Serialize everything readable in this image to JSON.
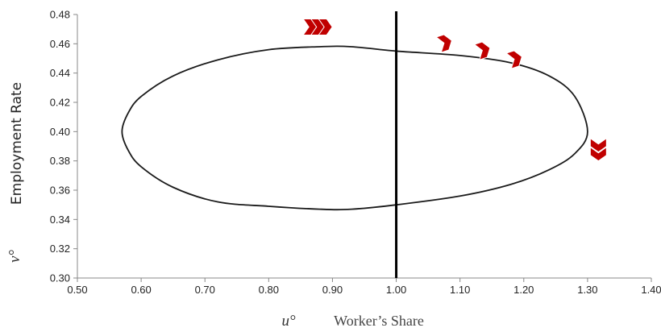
{
  "chart_data": {
    "type": "line",
    "title": "",
    "xlabel": "Worker’s Share",
    "xlabel_symbol": "u°",
    "ylabel": "Employment Rate",
    "ylabel_symbol": "v°",
    "xlim": [
      0.5,
      1.4
    ],
    "ylim": [
      0.3,
      0.48
    ],
    "xticks": [
      "0.50",
      "0.60",
      "0.70",
      "0.80",
      "0.90",
      "1.00",
      "1.10",
      "1.20",
      "1.30",
      "1.40"
    ],
    "yticks": [
      "0.48",
      "0.46",
      "0.44",
      "0.42",
      "0.40",
      "0.38",
      "0.36",
      "0.34",
      "0.32",
      "0.30"
    ],
    "grid": false,
    "legend": "none",
    "series": [
      {
        "shape": "closed orbit (ellipse)",
        "x": [
          1.3,
          1.28,
          1.24,
          1.18,
          1.1,
          1.0,
          0.93,
          0.88,
          0.8,
          0.72,
          0.65,
          0.6,
          0.58,
          0.57,
          0.58,
          0.6,
          0.65,
          0.72,
          0.8,
          0.88,
          0.93,
          1.0,
          1.1,
          1.18,
          1.24,
          1.28,
          1.3
        ],
        "y": [
          0.4,
          0.424,
          0.438,
          0.447,
          0.452,
          0.455,
          0.458,
          0.458,
          0.456,
          0.449,
          0.438,
          0.424,
          0.413,
          0.4,
          0.387,
          0.376,
          0.362,
          0.352,
          0.349,
          0.347,
          0.347,
          0.35,
          0.356,
          0.364,
          0.374,
          0.385,
          0.4
        ],
        "color": "#1a1a1a"
      }
    ],
    "reference_lines": [
      {
        "orientation": "vertical",
        "x": 1.0,
        "color": "#000000"
      }
    ],
    "direction_markers": [
      {
        "x": 0.875,
        "y": 0.4715,
        "direction": "right",
        "count": 3,
        "color": "#c00000"
      },
      {
        "x": 1.075,
        "y": 0.4605,
        "direction": "right",
        "count": 1,
        "color": "#c00000"
      },
      {
        "x": 1.135,
        "y": 0.4555,
        "direction": "right",
        "count": 1,
        "color": "#c00000"
      },
      {
        "x": 1.185,
        "y": 0.4495,
        "direction": "right",
        "count": 1,
        "color": "#c00000"
      },
      {
        "x": 1.317,
        "y": 0.3885,
        "direction": "down",
        "count": 2,
        "color": "#c00000"
      }
    ]
  }
}
